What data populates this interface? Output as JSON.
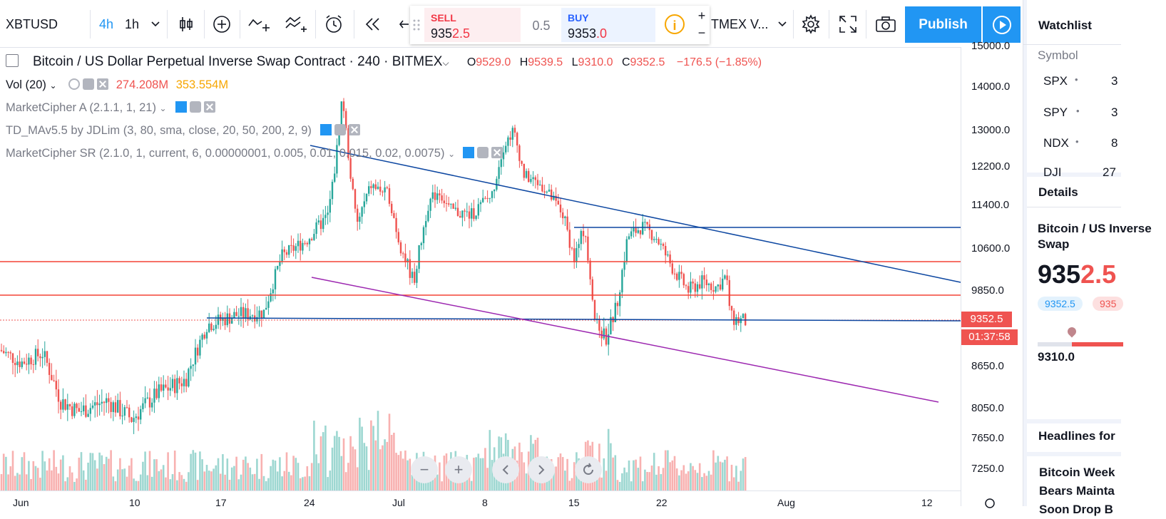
{
  "toolbar": {
    "symbol": "XBTUSD",
    "interval_4h": "4h",
    "interval_1h": "1h",
    "broker_short": "TMEX V...",
    "publish_label": "Publish"
  },
  "trade": {
    "sell_label": "SELL",
    "sell_price_main": "935",
    "sell_price_hl": "2.5",
    "quantity": "0.5",
    "buy_label": "BUY",
    "buy_price_main": "9353",
    "buy_price_hl": ".0",
    "plus": "+",
    "minus": "−"
  },
  "legend": {
    "title": "Bitcoin / US Dollar Perpetual Inverse Swap Contract · 240 · BITMEX",
    "o_label": "O",
    "o_val": "9529.0",
    "h_label": "H",
    "h_val": "9539.5",
    "l_label": "L",
    "l_val": "9310.0",
    "c_label": "C",
    "c_val": "9352.5",
    "change": "−176.5 (−1.85%)",
    "vol_label": "Vol (20)",
    "vol_val1": "274.208M",
    "vol_val2": "353.554M",
    "ind1": "MarketCipher A (2.1.1, 1, 21)",
    "ind2": "TD_MAv5.5 by JDLim (3, 80, sma, close, 20, 50, 200, 2, 9)",
    "ind3": "MarketCipher SR (2.1.0, 1, current, 6, 0.00000001, 0.005, 0.01, 0.015, 0.02, 0.0075)"
  },
  "price_axis": {
    "labels": [
      "15000.0",
      "14000.0",
      "13000.0",
      "12200.0",
      "11400.0",
      "10600.0",
      "9850.0",
      "8650.0",
      "8050.0",
      "7650.0",
      "7250.0"
    ],
    "last_price": "9352.5",
    "countdown": "01:37:58"
  },
  "time_axis": {
    "labels": [
      "Jun",
      "10",
      "17",
      "24",
      "Jul",
      "8",
      "15",
      "22",
      "Aug",
      "12"
    ]
  },
  "sidebar": {
    "watchlist_title": "Watchlist",
    "symbol_header": "Symbol",
    "rows": [
      {
        "sym": "SPX",
        "val": "3"
      },
      {
        "sym": "SPY",
        "val": "3"
      },
      {
        "sym": "NDX",
        "val": "8"
      },
      {
        "sym": "DJI",
        "val": "27"
      }
    ],
    "details_title": "Details",
    "details_name": "Bitcoin / US Inverse Swap",
    "details_price_main": "935",
    "details_price_hl": "2.5",
    "bid_pill": "9352.5",
    "ask_pill": "935",
    "low": "9310.0",
    "headlines_title": "Headlines for",
    "headline_text": "Bitcoin Week Bears Mainta Soon Drop B"
  },
  "colors": {
    "up": "#26a69a",
    "down": "#ef5350",
    "trend_blue": "#0d47a1",
    "support_purple": "#9c27b0",
    "level_red": "#f44336"
  }
}
